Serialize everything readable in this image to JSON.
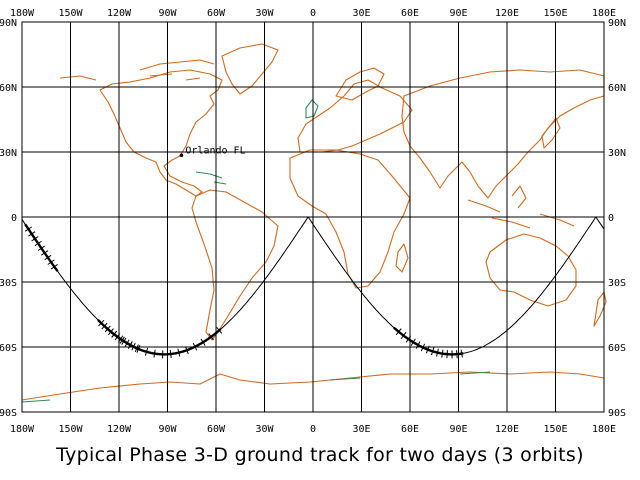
{
  "map": {
    "projection": "equirectangular",
    "lon_range": [
      -180,
      180
    ],
    "lat_range": [
      -90,
      90
    ],
    "grid": true,
    "land_color": "#d2691e",
    "land_accent_color": "#2e8b57",
    "track_color": "#000000",
    "lon_labels": [
      "180W",
      "150W",
      "120W",
      "90W",
      "60W",
      "30W",
      "0",
      "30E",
      "60E",
      "90E",
      "120E",
      "150E",
      "180E"
    ],
    "lat_labels": [
      "90N",
      "60N",
      "30N",
      "0",
      "30S",
      "60S",
      "90S"
    ],
    "place": {
      "label": "Orlando FL",
      "lon": -81.4,
      "lat": 28.5
    },
    "ground_track": {
      "inclination_deg": 63.4,
      "node_lons": [
        -181,
        -3,
        175
      ],
      "lon_span_deg": 178,
      "apogee_arcs": [
        {
          "from_lon": -128,
          "to_lon": -57
        },
        {
          "from_lon": 50,
          "to_lon": 93
        },
        {
          "from_lon": -178,
          "to_lon": -158
        },
        {
          "from_lon": -133,
          "to_lon": -107
        }
      ]
    }
  },
  "caption": "Typical Phase 3-D ground track for two days (3 orbits)"
}
